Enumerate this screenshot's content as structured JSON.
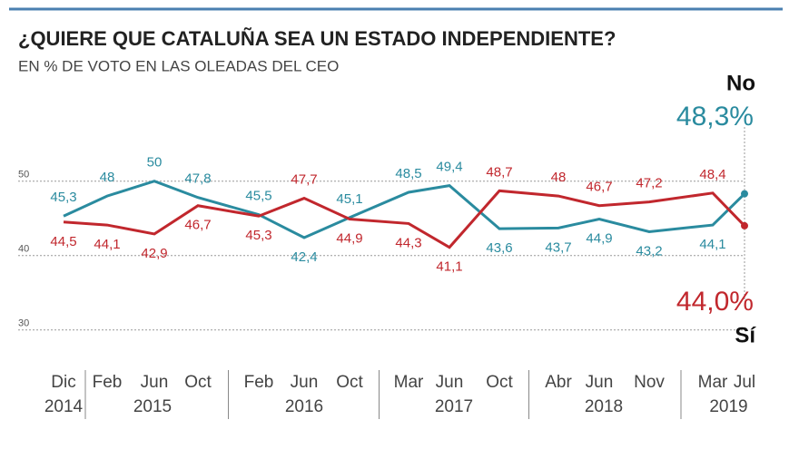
{
  "chart_data": {
    "type": "line",
    "title": "¿QUIERE QUE CATALUÑA SEA UN ESTADO INDEPENDIENTE?",
    "subtitle": "EN % DE VOTO EN LAS OLEADAS DEL CEO",
    "categories": [
      "Dic",
      "Feb",
      "Jun",
      "Oct",
      "Feb",
      "Jun",
      "Oct",
      "Mar",
      "Jun",
      "Oct",
      "Abr",
      "Jun",
      "Nov",
      "Mar",
      "Jul"
    ],
    "x_groups": [
      {
        "label": "2014",
        "span": 1
      },
      {
        "label": "2015",
        "span": 3
      },
      {
        "label": "2016",
        "span": 3
      },
      {
        "label": "2017",
        "span": 3
      },
      {
        "label": "2018",
        "span": 3
      },
      {
        "label": "2019",
        "span": 2
      }
    ],
    "series": [
      {
        "name": "No",
        "color": "#2a8b9f",
        "values": [
          45.3,
          48,
          50,
          47.8,
          45.5,
          42.4,
          45.1,
          48.5,
          49.4,
          43.6,
          43.7,
          44.9,
          43.2,
          44.1,
          48.3
        ],
        "value_labels": [
          "45,3",
          "48",
          "50",
          "47,8",
          "45,5",
          "42,4",
          "45,1",
          "48,5",
          "49,4",
          "43,6",
          "43,7",
          "44,9",
          "43,2",
          "44,1",
          "48,3%"
        ]
      },
      {
        "name": "Sí",
        "color": "#c1272d",
        "values": [
          44.5,
          44.1,
          42.9,
          46.7,
          45.3,
          47.7,
          44.9,
          44.3,
          41.1,
          48.7,
          48,
          46.7,
          47.2,
          48.4,
          44.0
        ],
        "value_labels": [
          "44,5",
          "44,1",
          "42,9",
          "46,7",
          "45,3",
          "47,7",
          "44,9",
          "44,3",
          "41,1",
          "48,7",
          "48",
          "46,7",
          "47,2",
          "48,4",
          "44,0%"
        ]
      }
    ],
    "ylim": [
      28.5,
      58.5
    ],
    "yticks": [
      30,
      40,
      50
    ],
    "grid": true
  }
}
